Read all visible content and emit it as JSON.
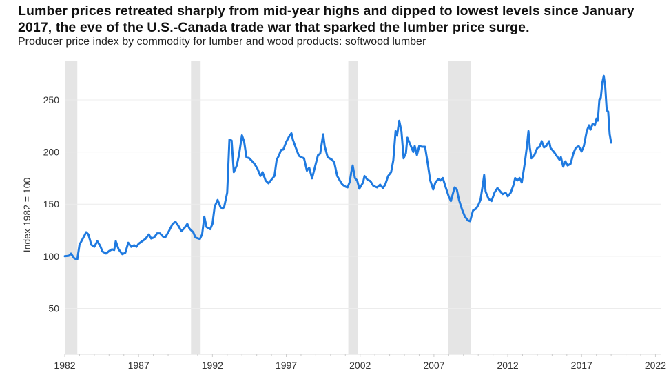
{
  "chart_data": {
    "type": "line",
    "title": "Lumber prices retreated sharply from mid-year highs and dipped to lowest levels since January 2017, the eve of the U.S.-Canada trade war that sparked the lumber price surge.",
    "subtitle": "Producer price index by commodity for lumber and wood products: softwood lumber",
    "xlabel": "",
    "ylabel": "Index 1982 = 100",
    "xlim": [
      1982,
      2022.4
    ],
    "ylim": [
      6,
      287
    ],
    "x_ticks": [
      "1982",
      "1987",
      "1992",
      "1997",
      "2002",
      "2007",
      "2012",
      "2017",
      "2022"
    ],
    "y_ticks": [
      "50",
      "100",
      "150",
      "200",
      "250"
    ],
    "grid": "horizontal",
    "line_color": "#1f7ae0",
    "recession_color": "#e5e5e5",
    "recessions": [
      [
        1982.0,
        1982.85
      ],
      [
        1990.55,
        1991.2
      ],
      [
        2001.2,
        2001.85
      ],
      [
        2007.95,
        2009.5
      ]
    ],
    "series": [
      {
        "x": [
          1982.0,
          1982.28,
          1982.42,
          1982.65,
          1982.85,
          1983.0,
          1983.3,
          1983.45,
          1983.6,
          1983.8,
          1984.0,
          1984.2,
          1984.4,
          1984.55,
          1984.8,
          1985.0,
          1985.2,
          1985.35,
          1985.45,
          1985.65,
          1985.9,
          1986.1,
          1986.3,
          1986.5,
          1986.7,
          1986.85,
          1987.0,
          1987.25,
          1987.45,
          1987.7,
          1987.85,
          1988.05,
          1988.25,
          1988.45,
          1988.65,
          1988.8,
          1989.05,
          1989.3,
          1989.5,
          1989.7,
          1989.9,
          1990.1,
          1990.3,
          1990.45,
          1990.7,
          1990.85,
          1991.15,
          1991.3,
          1991.45,
          1991.6,
          1991.85,
          1992.0,
          1992.15,
          1992.35,
          1992.55,
          1992.7,
          1992.8,
          1993.0,
          1993.15,
          1993.3,
          1993.45,
          1993.65,
          1993.8,
          1994.0,
          1994.15,
          1994.3,
          1994.5,
          1994.7,
          1994.85,
          1995.05,
          1995.25,
          1995.4,
          1995.6,
          1995.8,
          1995.95,
          1996.2,
          1996.35,
          1996.5,
          1996.65,
          1996.8,
          1997.0,
          1997.2,
          1997.35,
          1997.45,
          1997.65,
          1997.85,
          1998.0,
          1998.2,
          1998.4,
          1998.55,
          1998.75,
          1998.95,
          1999.15,
          1999.3,
          1999.5,
          1999.6,
          1999.8,
          2000.1,
          2000.25,
          2000.45,
          2000.65,
          2000.8,
          2001.0,
          2001.15,
          2001.3,
          2001.4,
          2001.5,
          2001.65,
          2001.8,
          2001.95,
          2002.2,
          2002.3,
          2002.5,
          2002.7,
          2002.9,
          2003.15,
          2003.35,
          2003.55,
          2003.7,
          2003.9,
          2004.1,
          2004.25,
          2004.4,
          2004.5,
          2004.65,
          2004.8,
          2004.95,
          2005.1,
          2005.2,
          2005.4,
          2005.6,
          2005.7,
          2005.85,
          2006.0,
          2006.2,
          2006.4,
          2006.6,
          2006.75,
          2006.95,
          2007.1,
          2007.3,
          2007.45,
          2007.6,
          2007.8,
          2008.0,
          2008.15,
          2008.3,
          2008.4,
          2008.55,
          2008.7,
          2008.9,
          2009.1,
          2009.3,
          2009.45,
          2009.65,
          2009.85,
          2010.0,
          2010.15,
          2010.3,
          2010.4,
          2010.5,
          2010.7,
          2010.9,
          2011.1,
          2011.3,
          2011.5,
          2011.65,
          2011.85,
          2012.0,
          2012.2,
          2012.4,
          2012.5,
          2012.65,
          2012.8,
          2012.95,
          2013.15,
          2013.3,
          2013.4,
          2013.5,
          2013.6,
          2013.8,
          2014.0,
          2014.15,
          2014.3,
          2014.45,
          2014.6,
          2014.8,
          2014.9,
          2015.1,
          2015.3,
          2015.5,
          2015.6,
          2015.75,
          2015.9,
          2016.05,
          2016.25,
          2016.45,
          2016.6,
          2016.8,
          2017.0,
          2017.15,
          2017.35,
          2017.5,
          2017.6,
          2017.75,
          2017.9,
          2018.0,
          2018.1,
          2018.2,
          2018.3,
          2018.4,
          2018.5,
          2018.6,
          2018.7,
          2018.8,
          2018.9,
          2019.0
        ],
        "y": [
          100,
          100.5,
          102.5,
          98,
          97,
          111,
          119,
          123,
          121,
          111,
          109,
          114.5,
          110,
          104.6,
          102.6,
          105,
          106.6,
          106,
          114.5,
          106.6,
          102,
          103.3,
          113,
          109,
          110.6,
          109,
          112,
          114.5,
          116.5,
          121,
          117,
          118,
          122,
          122,
          119,
          118,
          124,
          131,
          133,
          129,
          124,
          127,
          131,
          126.4,
          123,
          118,
          116.5,
          121,
          138,
          128,
          126,
          131,
          147.6,
          154,
          147,
          145.6,
          147.6,
          161,
          211.7,
          211,
          180.6,
          187,
          197,
          216,
          210,
          195,
          194,
          191,
          188.6,
          184,
          177,
          180.6,
          172.7,
          170,
          172.7,
          177,
          192.5,
          196.5,
          202,
          202.4,
          209.7,
          215,
          218,
          211.7,
          203.8,
          196.5,
          195,
          194,
          182,
          185,
          174.7,
          186,
          197,
          198.5,
          217,
          205.7,
          195,
          192.5,
          190,
          177,
          172,
          168.7,
          166.8,
          166,
          171.4,
          180.6,
          187,
          175,
          172.7,
          164.8,
          170.7,
          177,
          173.4,
          172,
          167.4,
          166,
          168.7,
          165.4,
          168.7,
          177,
          180.6,
          192,
          220,
          215.7,
          230,
          220,
          194,
          199,
          213.7,
          207,
          200,
          205.7,
          197,
          205.7,
          205,
          205,
          187,
          172.7,
          164,
          170.7,
          174,
          172.7,
          175,
          166,
          157.5,
          153,
          161,
          166,
          164,
          154,
          145,
          138,
          134.4,
          133.7,
          144,
          145.6,
          149,
          154,
          167.4,
          178,
          162,
          155,
          153,
          161,
          165.4,
          162,
          159.5,
          161,
          157.5,
          161,
          168.7,
          175,
          172.7,
          175,
          170.7,
          189,
          205.7,
          220,
          203.8,
          194,
          197,
          203.8,
          205,
          210.4,
          204.4,
          205.7,
          210.4,
          203.8,
          200.5,
          196.5,
          192.5,
          195,
          186,
          191,
          187,
          188.6,
          199,
          203.8,
          205.7,
          200.5,
          205.7,
          220,
          225.6,
          221.4,
          227,
          225.6,
          232,
          230,
          250,
          252,
          266.5,
          273,
          263,
          240,
          238.8,
          217,
          209
        ]
      }
    ]
  }
}
